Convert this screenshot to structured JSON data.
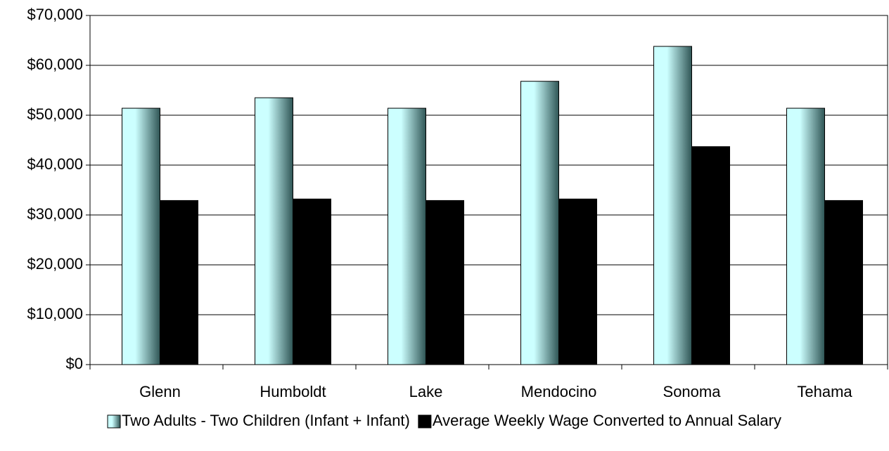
{
  "chart_data": {
    "type": "bar",
    "categories": [
      "Glenn",
      "Humboldt",
      "Lake",
      "Mendocino",
      "Sonoma",
      "Tehama"
    ],
    "series": [
      {
        "name": "Two Adults - Two Children (Infant + Infant)",
        "color": "#ccffff",
        "values": [
          51400,
          53500,
          51400,
          56800,
          63800,
          51400
        ]
      },
      {
        "name": "Average Weekly Wage Converted to Annual Salary",
        "color": "#000000",
        "values": [
          32900,
          33200,
          32900,
          33200,
          43700,
          32900
        ]
      }
    ],
    "ylim": [
      0,
      70000
    ],
    "yticks": [
      {
        "value": 0,
        "label": "$0"
      },
      {
        "value": 10000,
        "label": "$10,000"
      },
      {
        "value": 20000,
        "label": "$20,000"
      },
      {
        "value": 30000,
        "label": "$30,000"
      },
      {
        "value": 40000,
        "label": "$40,000"
      },
      {
        "value": 50000,
        "label": "$50,000"
      },
      {
        "value": 60000,
        "label": "$60,000"
      },
      {
        "value": 70000,
        "label": "$70,000"
      }
    ],
    "grid": true,
    "legend": "bottom"
  }
}
